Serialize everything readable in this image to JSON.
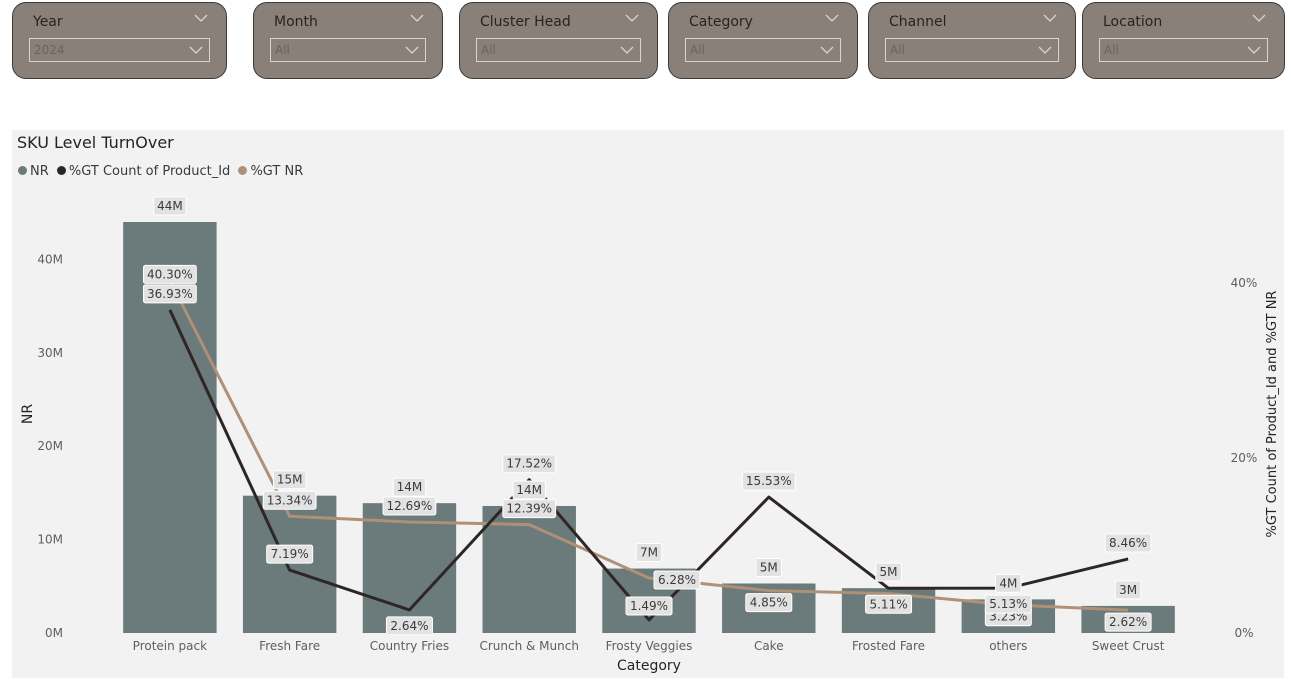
{
  "slicers": [
    {
      "label": "Year",
      "value": "2024"
    },
    {
      "label": "Month",
      "value": "All"
    },
    {
      "label": "Cluster Head",
      "value": "All"
    },
    {
      "label": "Category",
      "value": "All"
    },
    {
      "label": "Channel",
      "value": "All"
    },
    {
      "label": "Location",
      "value": "All"
    }
  ],
  "chart_data": {
    "type": "bar",
    "title": "SKU Level TurnOver",
    "xlabel": "Category",
    "ylabel": "NR",
    "y2label": "%GT Count of Product_Id and %GT NR",
    "categories": [
      "Protein pack",
      "Fresh Fare",
      "Country Fries",
      "Crunch & Munch",
      "Frosty Veggies",
      "Cake",
      "Frosted Fare",
      "others",
      "Sweet Crust"
    ],
    "ylim": [
      0,
      44000000
    ],
    "y_ticks": [
      {
        "v": 0,
        "label": "0M"
      },
      {
        "v": 10000000,
        "label": "10M"
      },
      {
        "v": 20000000,
        "label": "20M"
      },
      {
        "v": 30000000,
        "label": "30M"
      },
      {
        "v": 40000000,
        "label": "40M"
      }
    ],
    "y2lim": [
      0,
      40
    ],
    "y2_ticks": [
      {
        "v": 0,
        "label": "0%"
      },
      {
        "v": 20,
        "label": "20%"
      },
      {
        "v": 40,
        "label": "40%"
      }
    ],
    "legend_position": "top-left",
    "colors": {
      "nr": "#6b7a7a",
      "count": "#2e2626",
      "gtnr": "#b09077"
    },
    "series": [
      {
        "name": "NR",
        "type": "bar",
        "axis": "left",
        "values": [
          44000000,
          14700000,
          13900000,
          13600000,
          6900000,
          5300000,
          4800000,
          3600000,
          2900000
        ],
        "labels": [
          "44M",
          "15M",
          "14M",
          "14M",
          "7M",
          "5M",
          "5M",
          "4M",
          "3M"
        ]
      },
      {
        "name": "%GT Count of Product_Id",
        "type": "line",
        "axis": "right",
        "values": [
          36.93,
          7.19,
          2.64,
          17.52,
          1.49,
          15.53,
          5.11,
          5.13,
          8.46
        ],
        "labels": [
          "36.93%",
          "7.19%",
          "2.64%",
          "17.52%",
          "1.49%",
          "15.53%",
          "5.11%",
          "5.13%",
          "8.46%"
        ]
      },
      {
        "name": "%GT NR",
        "type": "line",
        "axis": "right",
        "values": [
          40.3,
          13.34,
          12.69,
          12.39,
          6.28,
          4.85,
          4.5,
          3.23,
          2.62
        ],
        "labels": [
          "40.30%",
          "13.34%",
          "12.69%",
          "12.39%",
          "6.28%",
          "4.85%",
          "",
          "3.23%",
          "2.62%"
        ]
      }
    ]
  }
}
